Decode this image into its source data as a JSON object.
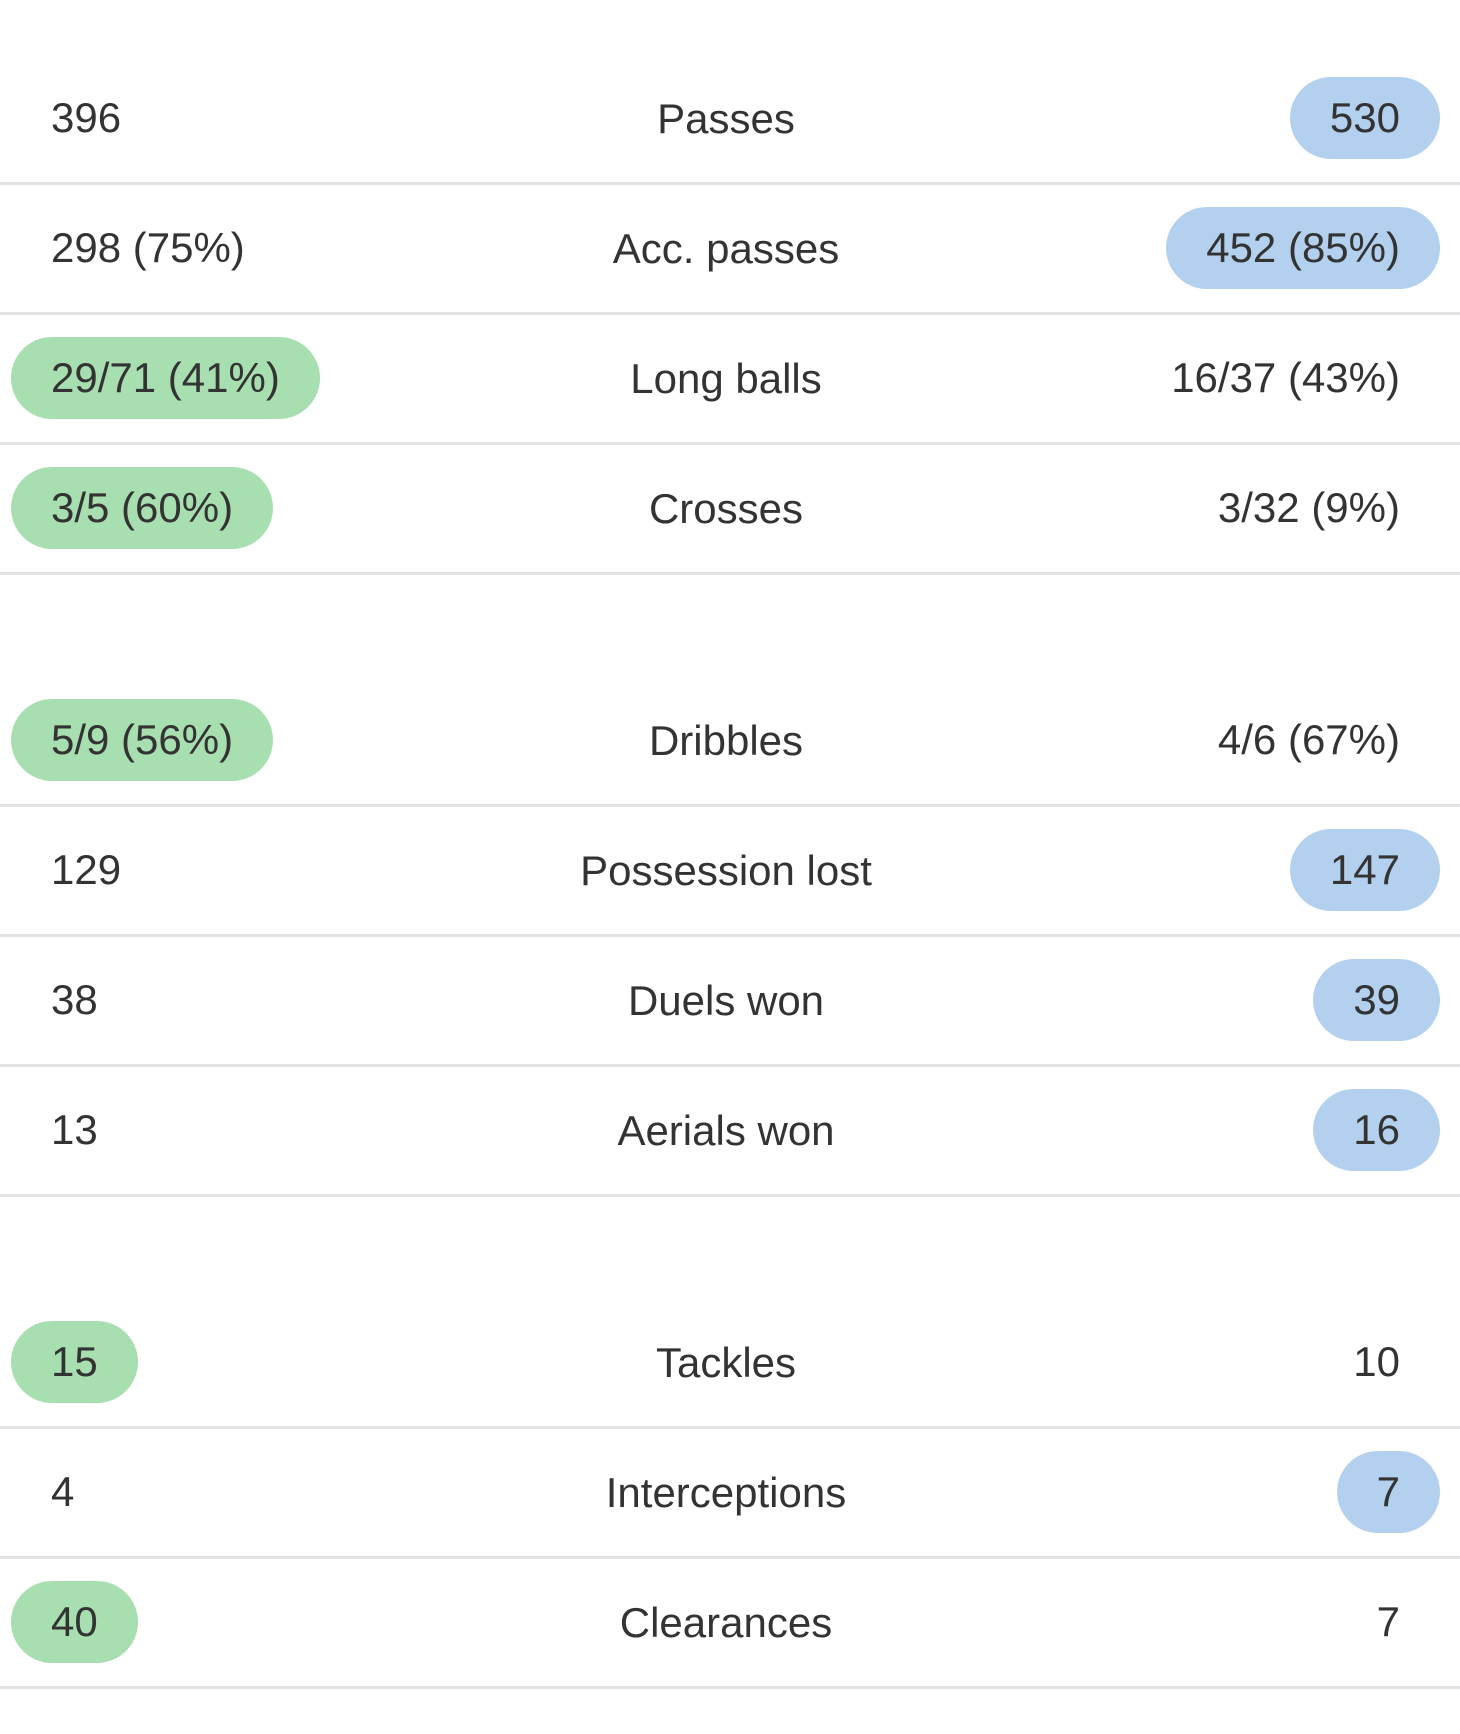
{
  "groups": [
    {
      "rows": [
        {
          "label": "Passes",
          "home": "396",
          "away": "530",
          "winner": "away"
        },
        {
          "label": "Acc. passes",
          "home": "298 (75%)",
          "away": "452 (85%)",
          "winner": "away"
        },
        {
          "label": "Long balls",
          "home": "29/71 (41%)",
          "away": "16/37 (43%)",
          "winner": "home"
        },
        {
          "label": "Crosses",
          "home": "3/5 (60%)",
          "away": "3/32 (9%)",
          "winner": "home"
        }
      ]
    },
    {
      "rows": [
        {
          "label": "Dribbles",
          "home": "5/9 (56%)",
          "away": "4/6 (67%)",
          "winner": "home"
        },
        {
          "label": "Possession lost",
          "home": "129",
          "away": "147",
          "winner": "away"
        },
        {
          "label": "Duels won",
          "home": "38",
          "away": "39",
          "winner": "away"
        },
        {
          "label": "Aerials won",
          "home": "13",
          "away": "16",
          "winner": "away"
        }
      ]
    },
    {
      "rows": [
        {
          "label": "Tackles",
          "home": "15",
          "away": "10",
          "winner": "home"
        },
        {
          "label": "Interceptions",
          "home": "4",
          "away": "7",
          "winner": "away"
        },
        {
          "label": "Clearances",
          "home": "40",
          "away": "7",
          "winner": "home"
        }
      ]
    }
  ],
  "colors": {
    "home_highlight": "#a8dfb0",
    "away_highlight": "#b3d0ee",
    "divider": "#e3e3e3",
    "text": "#333333"
  }
}
